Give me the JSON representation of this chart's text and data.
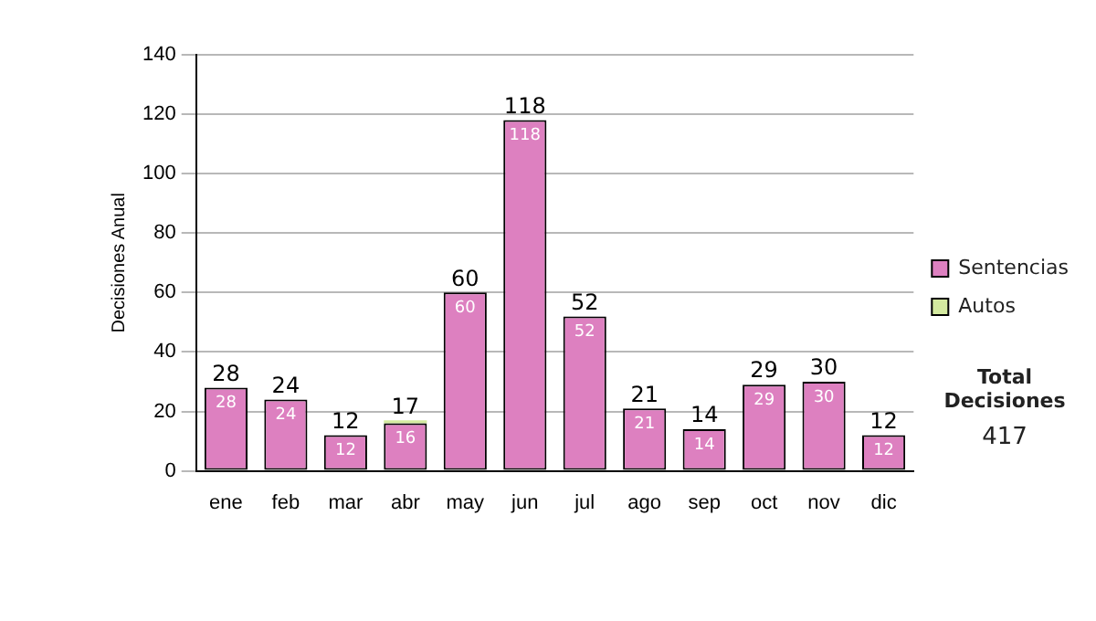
{
  "chart_data": {
    "type": "bar",
    "stacked": true,
    "ylabel": "Decisiones Anual",
    "categories": [
      "ene",
      "feb",
      "mar",
      "abr",
      "may",
      "jun",
      "jul",
      "ago",
      "sep",
      "oct",
      "nov",
      "dic"
    ],
    "series": [
      {
        "name": "Sentencias",
        "color": "#dd80c0",
        "values": [
          28,
          24,
          12,
          16,
          60,
          118,
          52,
          21,
          14,
          29,
          30,
          12
        ],
        "value_labels": [
          "28",
          "24",
          "12",
          "16",
          "60",
          "118",
          "52",
          "21",
          "14",
          "29",
          "30",
          "12"
        ]
      },
      {
        "name": "Autos",
        "color": "#d4eaa0",
        "values": [
          0,
          0,
          0,
          1,
          0,
          0,
          0,
          0,
          0,
          0,
          0,
          0
        ]
      }
    ],
    "totals": [
      "28",
      "24",
      "12",
      "17",
      "60",
      "118",
      "52",
      "21",
      "14",
      "29",
      "30",
      "12"
    ],
    "ylim": [
      0,
      140
    ],
    "yticks": [
      0,
      20,
      40,
      60,
      80,
      100,
      120,
      140
    ],
    "grid": "y",
    "legend": "right",
    "annotations": [
      "Total Decisiones",
      "417"
    ]
  }
}
